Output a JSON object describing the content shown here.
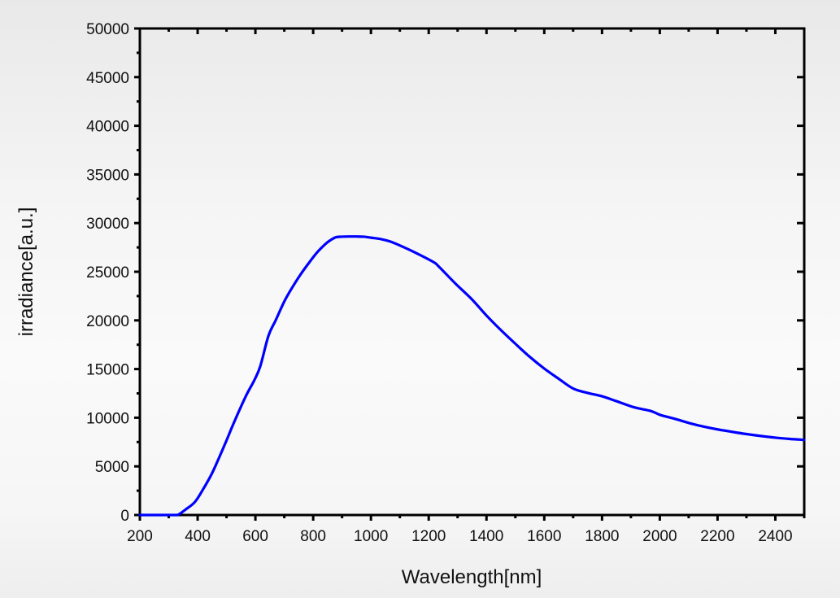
{
  "chart_data": {
    "type": "line",
    "title": "",
    "xlabel": "Wavelength[nm]",
    "ylabel": "irradiance[a.u.]",
    "xlim": [
      200,
      2500
    ],
    "ylim": [
      0,
      50000
    ],
    "grid": false,
    "legend": null,
    "x_ticks": [
      200,
      400,
      600,
      800,
      1000,
      1200,
      1400,
      1600,
      1800,
      2000,
      2200,
      2400
    ],
    "x_tick_labels": [
      "200",
      "400",
      "600",
      "800",
      "1000",
      "1200",
      "1400",
      "1600",
      "1800",
      "2000",
      "2200",
      "2400"
    ],
    "x_minor_step": 100,
    "y_ticks": [
      0,
      5000,
      10000,
      15000,
      20000,
      25000,
      30000,
      35000,
      40000,
      45000,
      50000
    ],
    "y_tick_labels": [
      "0",
      "5000",
      "10000",
      "15000",
      "20000",
      "25000",
      "30000",
      "35000",
      "40000",
      "45000",
      "50000"
    ],
    "y_minor_step": 2500,
    "series": [
      {
        "name": "irradiance",
        "color": "#0000ff",
        "x": [
          200,
          250,
          300,
          330,
          360,
          391,
          420,
          448,
          470,
          498,
          520,
          546,
          570,
          597,
          617,
          645,
          670,
          701,
          730,
          757,
          785,
          814,
          842,
          860,
          878,
          898,
          925,
          950,
          975,
          1000,
          1035,
          1067,
          1100,
          1151,
          1216,
          1236,
          1292,
          1350,
          1400,
          1450,
          1500,
          1550,
          1600,
          1650,
          1700,
          1750,
          1800,
          1850,
          1912,
          1968,
          2002,
          2050,
          2109,
          2150,
          2200,
          2250,
          2300,
          2350,
          2400,
          2450,
          2500
        ],
        "y": [
          0,
          0,
          0,
          0,
          600,
          1360,
          2700,
          4180,
          5600,
          7520,
          9100,
          10870,
          12400,
          13900,
          15300,
          18400,
          20000,
          22000,
          23500,
          24750,
          25900,
          27000,
          27840,
          28250,
          28540,
          28600,
          28620,
          28620,
          28600,
          28500,
          28350,
          28100,
          27700,
          27000,
          26000,
          25500,
          23800,
          22150,
          20500,
          19000,
          17600,
          16250,
          15050,
          14000,
          13000,
          12550,
          12200,
          11700,
          11060,
          10700,
          10280,
          9900,
          9390,
          9100,
          8800,
          8550,
          8320,
          8120,
          7950,
          7820,
          7720
        ]
      }
    ]
  }
}
